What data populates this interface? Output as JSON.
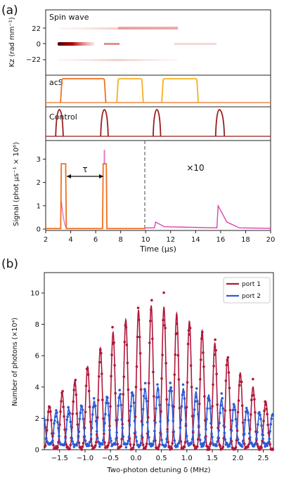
{
  "panel_a": {
    "label": "(a)",
    "spinwave": {
      "label": "Spin wave",
      "ylabel": "Kz (rad mm⁻¹)",
      "yticks": [
        "22",
        "0",
        "−22"
      ]
    },
    "acs": {
      "label": "acS"
    },
    "control": {
      "label": "Control"
    },
    "signal": {
      "ylabel": "Signal (phot μs⁻¹ × 10⁶)",
      "yticks": [
        "0",
        "1",
        "2",
        "3"
      ],
      "tau_label": "τ",
      "gain_label": "×10"
    },
    "xlabel": "Time (μs)",
    "xticks": [
      "2",
      "4",
      "6",
      "8",
      "10",
      "12",
      "14",
      "16",
      "18",
      "20"
    ]
  },
  "panel_b": {
    "label": "(b)",
    "xlabel": "Two-photon detuning δ (MHz)",
    "ylabel": "Number of photons (×10⁴)",
    "xticks": [
      "−1.5",
      "−1.0",
      "−0.5",
      "0.0",
      "0.5",
      "1.0",
      "1.5",
      "2.0",
      "2.5"
    ],
    "yticks": [
      "0",
      "2",
      "4",
      "6",
      "8",
      "10"
    ],
    "legend": [
      "port 1",
      "port 2"
    ]
  },
  "colors": {
    "dark_red": "#9b1b1b",
    "orange": "#f07020",
    "gold": "#f5b020",
    "magenta": "#e040b0",
    "port1": "#b0183a",
    "port2": "#2a5cd6"
  },
  "chart_data": [
    {
      "type": "line",
      "title": "Control",
      "x_axis": "Time (μs)",
      "xlim": [
        2,
        20
      ],
      "series": [
        {
          "values": [
            [
              2.8,
              0.0
            ],
            [
              3.1,
              1.0
            ],
            [
              3.4,
              0.0
            ],
            [
              6.4,
              0.0
            ],
            [
              6.7,
              1.0
            ],
            [
              7.0,
              0.0
            ],
            [
              10.6,
              0.0
            ],
            [
              10.9,
              1.0
            ],
            [
              11.2,
              0.0
            ],
            [
              15.6,
              0.0
            ],
            [
              15.9,
              1.0
            ],
            [
              16.3,
              0.0
            ]
          ]
        }
      ]
    },
    {
      "type": "line",
      "title": "acS",
      "x_axis": "Time (μs)",
      "xlim": [
        2,
        20
      ],
      "series": [
        {
          "values": [
            [
              3.3,
              1.0
            ],
            [
              6.7,
              1.0
            ]
          ]
        },
        {
          "values": [
            [
              7.8,
              1.0
            ],
            [
              9.7,
              1.0
            ]
          ]
        },
        {
          "values": [
            [
              11.4,
              1.0
            ],
            [
              14.1,
              1.0
            ]
          ]
        }
      ]
    },
    {
      "type": "line",
      "x_axis": "Time (μs)",
      "y_axis": "Signal (phot μs⁻¹ × 10⁶)",
      "xlim": [
        2,
        20
      ],
      "ylim": [
        0,
        3.8
      ],
      "series": [
        {
          "values": [
            [
              2.0,
              0.02
            ],
            [
              3.2,
              0.02
            ],
            [
              3.25,
              2.8
            ],
            [
              3.6,
              2.8
            ],
            [
              3.65,
              0.02
            ],
            [
              6.55,
              0.02
            ],
            [
              6.6,
              2.8
            ],
            [
              6.85,
              2.8
            ],
            [
              6.9,
              0.02
            ],
            [
              10.0,
              0.02
            ]
          ]
        },
        {
          "values": [
            [
              10.0,
              0.05
            ],
            [
              10.7,
              0.05
            ],
            [
              10.8,
              0.3
            ],
            [
              11.5,
              0.1
            ],
            [
              15.7,
              0.05
            ],
            [
              15.8,
              1.0
            ],
            [
              16.5,
              0.3
            ],
            [
              17.5,
              0.05
            ],
            [
              20.0,
              0.03
            ]
          ]
        }
      ],
      "annotations": [
        "τ",
        "×10"
      ]
    },
    {
      "type": "line",
      "x_axis": "Two-photon detuning δ (MHz)",
      "y_axis": "Number of photons (×10⁴)",
      "xlim": [
        -1.8,
        2.7
      ],
      "ylim": [
        0,
        11.3
      ],
      "legend": "top-right",
      "series": [
        {
          "name": "port 1",
          "peaks_x": [
            -1.7,
            -1.45,
            -1.2,
            -0.95,
            -0.7,
            -0.45,
            -0.2,
            0.05,
            0.3,
            0.55,
            0.8,
            1.05,
            1.3,
            1.55,
            1.8,
            2.05,
            2.3,
            2.55
          ],
          "peaks_y": [
            2.8,
            3.6,
            4.4,
            5.3,
            6.5,
            7.5,
            8.3,
            8.9,
            9.2,
            9.1,
            8.7,
            8.2,
            7.6,
            6.8,
            5.9,
            4.9,
            4.0,
            3.1
          ]
        },
        {
          "name": "port 2",
          "peaks_x": [
            -1.57,
            -1.32,
            -1.07,
            -0.82,
            -0.57,
            -0.32,
            -0.07,
            0.18,
            0.43,
            0.68,
            0.93,
            1.18,
            1.43,
            1.68,
            1.93,
            2.18,
            2.43
          ],
          "peaks_y": [
            2.4,
            2.6,
            2.8,
            3.1,
            3.3,
            3.5,
            3.7,
            3.9,
            4.0,
            4.0,
            3.9,
            3.7,
            3.5,
            3.2,
            2.9,
            2.6,
            2.3
          ]
        }
      ]
    }
  ]
}
